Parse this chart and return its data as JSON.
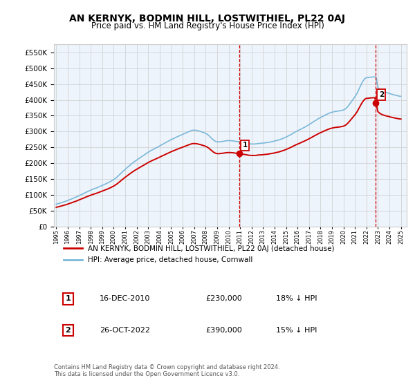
{
  "title": "AN KERNYK, BODMIN HILL, LOSTWITHIEL, PL22 0AJ",
  "subtitle": "Price paid vs. HM Land Registry's House Price Index (HPI)",
  "ytick_values": [
    0,
    50000,
    100000,
    150000,
    200000,
    250000,
    300000,
    350000,
    400000,
    450000,
    500000,
    550000
  ],
  "ylim": [
    0,
    575000
  ],
  "xlim_start": 1994.8,
  "xlim_end": 2025.5,
  "xtick_years": [
    1995,
    1996,
    1997,
    1998,
    1999,
    2000,
    2001,
    2002,
    2003,
    2004,
    2005,
    2006,
    2007,
    2008,
    2009,
    2010,
    2011,
    2012,
    2013,
    2014,
    2015,
    2016,
    2017,
    2018,
    2019,
    2020,
    2021,
    2022,
    2023,
    2024,
    2025
  ],
  "hpi_color": "#7ab8d9",
  "price_color": "#cc0000",
  "vline_color": "#cc0000",
  "sale1_x": 2010.96,
  "sale1_y": 230000,
  "sale1_label": "1",
  "sale2_x": 2022.82,
  "sale2_y": 390000,
  "sale2_label": "2",
  "legend_price_label": "AN KERNYK, BODMIN HILL, LOSTWITHIEL, PL22 0AJ (detached house)",
  "legend_hpi_label": "HPI: Average price, detached house, Cornwall",
  "note1_num": "1",
  "note1_date": "16-DEC-2010",
  "note1_price": "£230,000",
  "note1_pct": "18% ↓ HPI",
  "note2_num": "2",
  "note2_date": "26-OCT-2022",
  "note2_price": "£390,000",
  "note2_pct": "15% ↓ HPI",
  "footer": "Contains HM Land Registry data © Crown copyright and database right 2024.\nThis data is licensed under the Open Government Licence v3.0.",
  "bg_color": "#ffffff",
  "grid_color": "#cccccc"
}
